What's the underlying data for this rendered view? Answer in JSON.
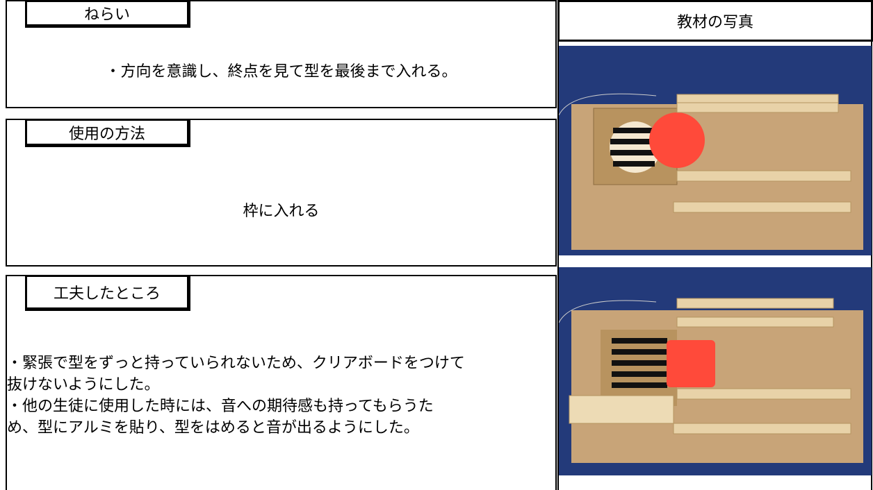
{
  "sections": [
    {
      "heading": "ねらい",
      "lines": [
        "・方向を意識し、終点を見て型を最後まで入れる。"
      ]
    },
    {
      "heading": "使用の方法",
      "lines": [
        "枠に入れる"
      ]
    },
    {
      "heading": "工夫したところ",
      "lines": [
        "・緊張で型をずっと持っていられないため、クリアボードをつけて",
        "抜けないようにした。",
        "・他の生徒に使用した時には、音への期待感も持ってもらうた",
        "め、型にアルミを貼り、型をはめると音が出るようにした。"
      ]
    }
  ],
  "photos": {
    "heading": "教材の写真"
  }
}
